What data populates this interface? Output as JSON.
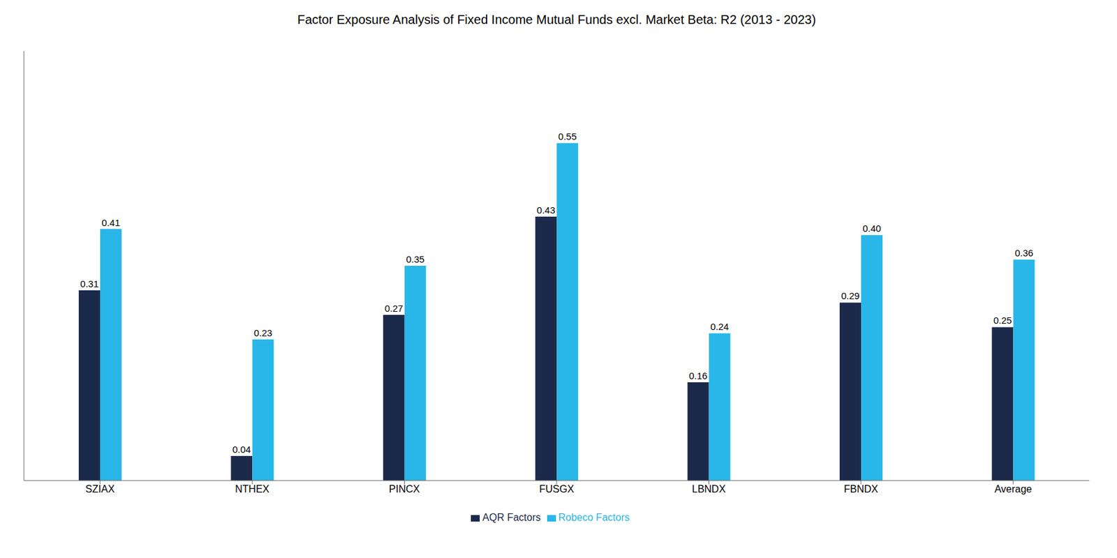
{
  "chart_data": {
    "type": "bar",
    "title": "Factor Exposure Analysis of Fixed Income Mutual Funds excl. Market Beta: R2 (2013 -  2023)",
    "categories": [
      "SZIAX",
      "NTHEX",
      "PINCX",
      "FUSGX",
      "LBNDX",
      "FBNDX",
      "Average"
    ],
    "series": [
      {
        "name": "AQR Factors",
        "color": "#1b2a4a",
        "values": [
          0.31,
          0.04,
          0.27,
          0.43,
          0.16,
          0.29,
          0.25
        ],
        "value_labels": [
          "0.31",
          "0.04",
          "0.27",
          "0.43",
          "0.16",
          "0.29",
          "0.25"
        ]
      },
      {
        "name": "Robeco Factors",
        "color": "#29b6e8",
        "values": [
          0.41,
          0.23,
          0.35,
          0.55,
          0.24,
          0.4,
          0.36
        ],
        "value_labels": [
          "0.41",
          "0.23",
          "0.35",
          "0.55",
          "0.24",
          "0.40",
          "0.36"
        ]
      }
    ],
    "ylim": [
      0,
      0.7
    ],
    "grid": false,
    "legend": "bottom",
    "data_labels": true,
    "tick_labels": "x"
  }
}
